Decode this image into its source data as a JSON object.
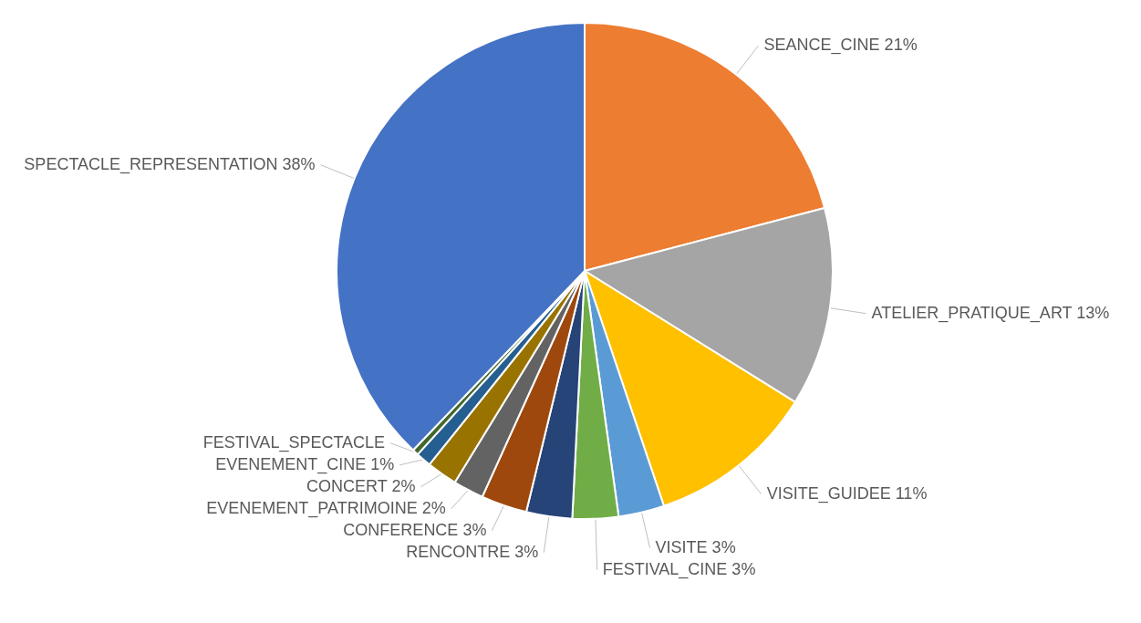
{
  "chart_data": {
    "type": "pie",
    "categories": [
      "SEANCE_CINE",
      "ATELIER_PRATIQUE_ART",
      "VISITE_GUIDEE",
      "VISITE",
      "FESTIVAL_CINE",
      "RENCONTRE",
      "CONFERENCE",
      "EVENEMENT_PATRIMOINE",
      "CONCERT",
      "EVENEMENT_CINE",
      "FESTIVAL_SPECTACLE",
      "SPECTACLE_REPRESENTATION"
    ],
    "values": [
      21,
      13,
      11,
      3,
      3,
      3,
      3,
      2,
      2,
      1,
      0.4,
      38
    ],
    "value_labels": [
      "21%",
      "13%",
      "11%",
      "3%",
      "3%",
      "3%",
      "3%",
      "2%",
      "2%",
      "1%",
      null,
      "38%"
    ],
    "colors": [
      "#ed7d31",
      "#a5a5a5",
      "#ffc000",
      "#5b9bd5",
      "#70ad47",
      "#264478",
      "#9e480e",
      "#636363",
      "#997300",
      "#255e91",
      "#43682b",
      "#4472c4"
    ]
  }
}
